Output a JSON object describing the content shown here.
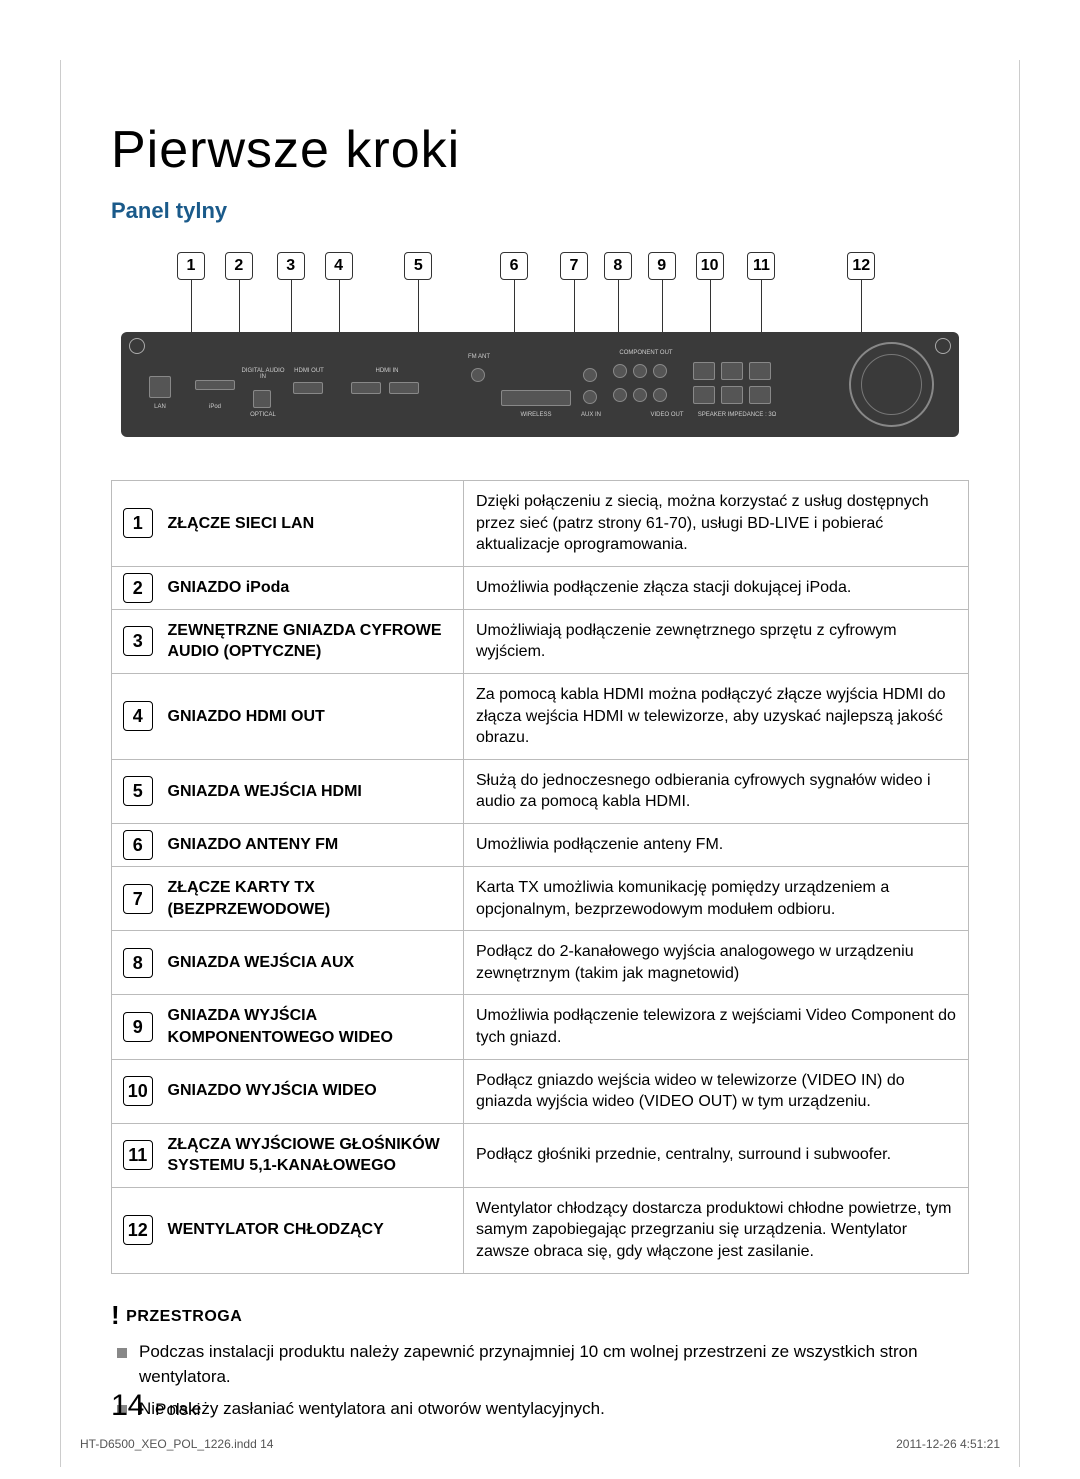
{
  "chapter_title": "Pierwsze kroki",
  "section_title": "Panel tylny",
  "diagram": {
    "callouts": [
      "1",
      "2",
      "3",
      "4",
      "5",
      "6",
      "7",
      "8",
      "9",
      "10",
      "11",
      "12"
    ],
    "callout_positions_pct": [
      4.5,
      10.5,
      17.0,
      23.0,
      33.0,
      45.0,
      52.5,
      58.0,
      63.5,
      69.5,
      76.0,
      88.5
    ],
    "port_labels": {
      "lan": "LAN",
      "ipod": "iPod",
      "digital": "DIGITAL AUDIO IN",
      "optical": "OPTICAL",
      "hdmi_out": "HDMI OUT",
      "hdmi_in": "HDMI IN",
      "fm": "FM ANT",
      "wireless": "WIRELESS",
      "aux": "AUX IN",
      "component": "COMPONENT OUT",
      "video": "VIDEO OUT",
      "speaker": "SPEAKER IMPEDANCE : 3Ω"
    }
  },
  "rows": [
    {
      "n": "1",
      "label": "ZŁĄCZE SIECI LAN",
      "desc": "Dzięki połączeniu z siecią, można korzystać z usług dostępnych przez sieć (patrz strony 61-70), usługi BD-LIVE i pobierać aktualizacje oprogramowania."
    },
    {
      "n": "2",
      "label": "GNIAZDO iPoda",
      "desc": "Umożliwia podłączenie złącza stacji dokującej iPoda."
    },
    {
      "n": "3",
      "label": "ZEWNĘTRZNE GNIAZDA CYFROWE AUDIO (OPTYCZNE)",
      "desc": "Umożliwiają podłączenie zewnętrznego sprzętu z cyfrowym wyjściem."
    },
    {
      "n": "4",
      "label": "GNIAZDO HDMI OUT",
      "desc": "Za pomocą kabla HDMI można podłączyć złącze wyjścia HDMI do złącza wejścia HDMI w telewizorze, aby uzyskać najlepszą jakość obrazu."
    },
    {
      "n": "5",
      "label": "GNIAZDA WEJŚCIA HDMI",
      "desc": "Służą do jednoczesnego odbierania cyfrowych sygnałów wideo i audio za pomocą kabla HDMI."
    },
    {
      "n": "6",
      "label": "GNIAZDO ANTENY FM",
      "desc": "Umożliwia podłączenie anteny FM."
    },
    {
      "n": "7",
      "label": "ZŁĄCZE KARTY TX (BEZPRZEWODOWE)",
      "desc": "Karta TX umożliwia komunikację pomiędzy urządzeniem a opcjonalnym, bezprzewodowym modułem odbioru."
    },
    {
      "n": "8",
      "label": "GNIAZDA WEJŚCIA AUX",
      "desc": "Podłącz do 2-kanałowego wyjścia analogowego w urządzeniu zewnętrznym (takim jak magnetowid)"
    },
    {
      "n": "9",
      "label": "GNIAZDA WYJŚCIA KOMPONENTOWEGO WIDEO",
      "desc": "Umożliwia podłączenie telewizora z wejściami Video Component do tych gniazd."
    },
    {
      "n": "10",
      "label": "GNIAZDO WYJŚCIA WIDEO",
      "desc": "Podłącz gniazdo wejścia wideo w telewizorze (VIDEO IN) do gniazda wyjścia wideo (VIDEO OUT) w tym urządzeniu."
    },
    {
      "n": "11",
      "label": "ZŁĄCZA WYJŚCIOWE GŁOŚNIKÓW SYSTEMU 5,1-KANAŁOWEGO",
      "desc": "Podłącz głośniki przednie, centralny, surround i subwoofer."
    },
    {
      "n": "12",
      "label": "WENTYLATOR CHŁODZĄCY",
      "desc": "Wentylator chłodzący dostarcza produktowi chłodne powietrze, tym samym zapobiegając przegrzaniu się urządzenia. Wentylator zawsze obraca się, gdy włączone jest zasilanie."
    }
  ],
  "caution": {
    "heading": "PRZESTROGA",
    "items": [
      "Podczas instalacji produktu należy zapewnić przynajmniej 10 cm wolnej przestrzeni ze wszystkich stron wentylatora.",
      "Nie należy zasłaniać wentylatora ani otworów wentylacyjnych."
    ]
  },
  "footer": {
    "page_number": "14",
    "language": "Polski",
    "indd": "HT-D6500_XEO_POL_1226.indd   14",
    "timestamp": "2011-12-26    4:51:21"
  },
  "colors": {
    "accent": "#1a5a8a",
    "border": "#bbbbbb",
    "panel_bg": "#3a3a3a"
  }
}
